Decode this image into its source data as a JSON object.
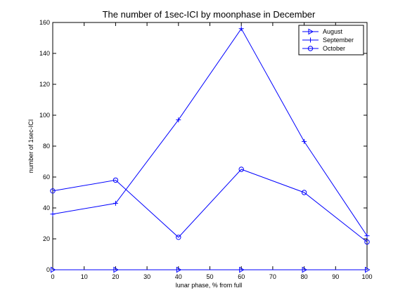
{
  "chart_data": {
    "type": "line",
    "title": "The number of 1sec-ICI by moonphase in December",
    "xlabel": "lunar phase, % from full",
    "ylabel": "number of 1sec-ICI",
    "xlim": [
      0,
      100
    ],
    "ylim": [
      0,
      160
    ],
    "xticks": [
      0,
      10,
      20,
      30,
      40,
      50,
      60,
      70,
      80,
      90,
      100
    ],
    "yticks": [
      0,
      20,
      40,
      60,
      80,
      100,
      120,
      140,
      160
    ],
    "x": [
      0,
      20,
      40,
      60,
      80,
      100
    ],
    "series": [
      {
        "name": "August",
        "marker": "triangle-right",
        "values": [
          0,
          0,
          0,
          0,
          0,
          0
        ]
      },
      {
        "name": "September",
        "marker": "plus",
        "values": [
          36,
          43,
          97,
          156,
          83,
          22
        ]
      },
      {
        "name": "October",
        "marker": "circle",
        "values": [
          51,
          58,
          21,
          65,
          50,
          18
        ]
      }
    ],
    "grid": false,
    "legend_position": "top-right",
    "line_color": "#0000ff"
  }
}
